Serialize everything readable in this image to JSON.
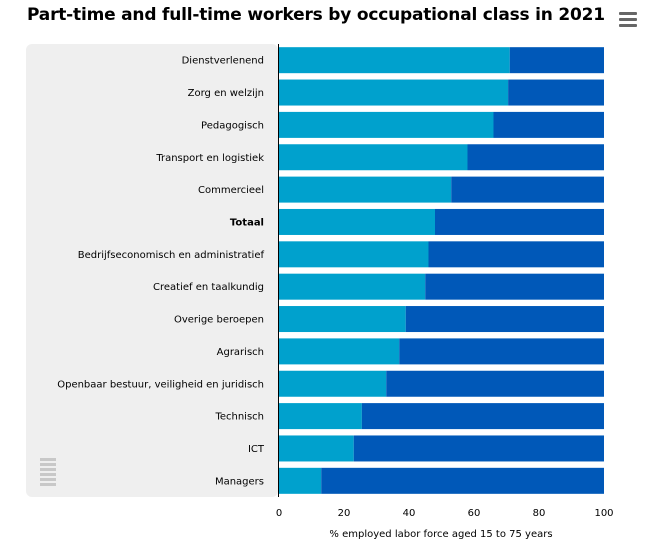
{
  "chart_data": {
    "type": "bar",
    "orientation": "horizontal",
    "stacked": true,
    "title": "Part-time and full-time workers by occupational class in 2021",
    "xlabel": "% employed labor force aged 15 to 75 years",
    "xlim": [
      0,
      100
    ],
    "xticks": [
      "0",
      "20",
      "40",
      "60",
      "80",
      "100"
    ],
    "categories": [
      "Dienstverlenend",
      "Zorg en welzijn",
      "Pedagogisch",
      "Transport en logistiek",
      "Commercieel",
      "Totaal",
      "Bedrijfseconomisch en administratief",
      "Creatief en taalkundig",
      "Overige beroepen",
      "Agrarisch",
      "Openbaar bestuur, veiligheid en juridisch",
      "Technisch",
      "ICT",
      "Managers"
    ],
    "bold_categories": [
      "Totaal"
    ],
    "series": [
      {
        "color": "#00a1cd",
        "values": [
          71,
          70.5,
          66,
          58,
          53,
          48,
          46,
          45,
          39,
          37,
          33,
          25.5,
          23,
          13
        ]
      },
      {
        "color": "#0058b8",
        "values": [
          29,
          29.5,
          34,
          42,
          47,
          52,
          54,
          55,
          61,
          63,
          67,
          74.5,
          77,
          87
        ]
      }
    ],
    "grid": false,
    "legend": "none"
  },
  "ui": {
    "menu_icon": "hamburger-menu-icon",
    "watermark_icon": "cbs-logo-icon"
  }
}
